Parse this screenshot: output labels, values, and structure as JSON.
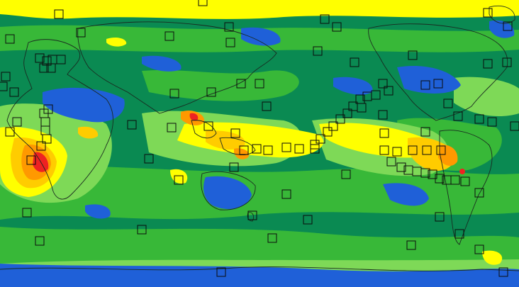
{
  "map": {
    "projection": "equirectangular",
    "center_longitude": 150,
    "palette": {
      "deep_teal": "#0a8a52",
      "green": "#38b838",
      "light_green": "#7ed957",
      "yellow": "#ffff00",
      "gold": "#ffcc00",
      "orange": "#ff9900",
      "red": "#ee2222",
      "blue": "#1f60d8",
      "coastline": "#1a2a20",
      "marker_stroke": "#0b0b0b"
    },
    "legend_visible": false,
    "station_marker_shape": "hollow-square"
  }
}
